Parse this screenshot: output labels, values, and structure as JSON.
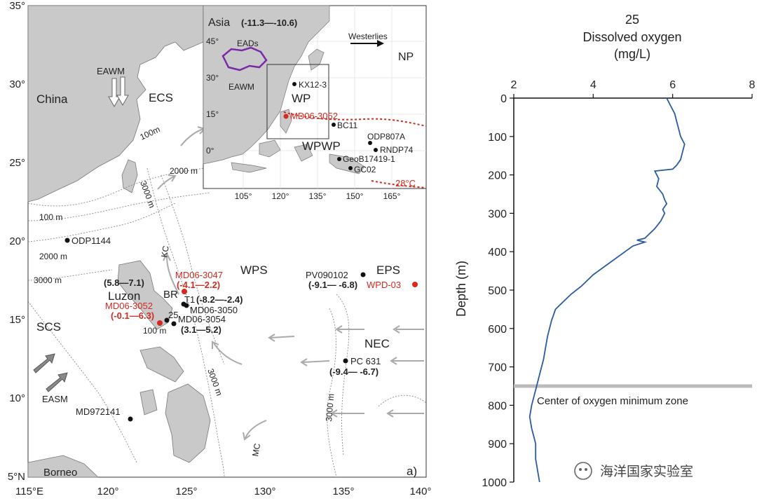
{
  "map": {
    "lat_ticks": [
      "35°",
      "30°",
      "25°",
      "20°",
      "15°",
      "10°",
      "5°N"
    ],
    "lon_ticks": [
      "115°E",
      "120°",
      "125°",
      "130°",
      "135°",
      "140°"
    ],
    "panel_label": "a)",
    "regions": {
      "china": "China",
      "ecs": "ECS",
      "eawm": "EAWM",
      "scs": "SCS",
      "luzon": "Luzon",
      "br": "BR",
      "wps": "WPS",
      "eps": "EPS",
      "nec": "NEC",
      "easm": "EASM",
      "borneo": "Borneo",
      "kc": "KC",
      "mc": "MC"
    },
    "contours": {
      "c100_ne": "100m",
      "c2000_ne": "2000 m",
      "c3000_tw": "3000 m",
      "c100_w": "100 m",
      "c2000_w": "2000 m",
      "c3000_w": "3000 m",
      "c100_lz": "100 m",
      "c3000_e": "3000 m",
      "c3000_ph": "3000 m"
    },
    "sites": {
      "odp1144": "ODP1144",
      "md063047": "MD06-3047",
      "md063047_range": "(-4.1—2.2)",
      "range_58": "(5.8—7.1)",
      "t1": "T1",
      "t1_range": "(-8.2—-2.4)",
      "md063050": "MD06-3050",
      "md063052": "MD06-3052",
      "md063052_range": "(-0.1—6.3)",
      "s25": "25",
      "md063054": "MD06-3054",
      "md063054_range": "(3.1—5.2)",
      "pv090102": "PV090102",
      "pv_range": "(-9.1— -6.8)",
      "wpd03": "WPD-03",
      "pc631": "PC 631",
      "pc631_range": "(-9.4— -6.7)",
      "md972141": "MD972141"
    }
  },
  "inset": {
    "asia": "Asia",
    "asia_range": "(-11.3—-10.6)",
    "eads": "EADs",
    "westerlies": "Westerlies",
    "np": "NP",
    "eawm": "EAWM",
    "kx": "KX12-3",
    "wp": "WP",
    "md": "MD06-3052",
    "bc": "BC11",
    "odp807": "ODP807A",
    "rndp": "RNDP74",
    "wpwp": "WPWP",
    "geob": "GeoB17419-1",
    "gc": "GC02",
    "isotherm": "28°C",
    "lat_ticks": [
      "45°",
      "30°",
      "15°",
      "0°"
    ],
    "lon_ticks": [
      "105°",
      "120°",
      "135°",
      "150°",
      "165°"
    ]
  },
  "chart_data": {
    "type": "line",
    "title": "25",
    "xlabel": "Dissolved oxygen\n(mg/L)",
    "xlabel_lines": [
      "Dissolved oxygen",
      "(mg/L)"
    ],
    "ylabel": "Depth (m)",
    "xlim": [
      2,
      8
    ],
    "ylim": [
      0,
      1000
    ],
    "x_ticks": [
      2,
      4,
      6,
      8
    ],
    "y_ticks": [
      0,
      100,
      200,
      300,
      400,
      500,
      600,
      700,
      800,
      900,
      1000
    ],
    "y_inverted": true,
    "line_color": "#2a5aa0",
    "annotation": {
      "text": "Center of oxygen minimum zone",
      "depth": 750
    },
    "series": [
      {
        "x": [
          5.85,
          5.95,
          6.05,
          6.1,
          6.15,
          6.2,
          6.3,
          6.25,
          6.2,
          6.1,
          6.0,
          5.55,
          5.65,
          5.6,
          5.75,
          5.8,
          5.85,
          5.75,
          5.8,
          5.7,
          5.55,
          5.4,
          5.3,
          5.1,
          5.3,
          5.0,
          4.8,
          4.4,
          4.0,
          3.7,
          3.45,
          3.25,
          3.05,
          2.95,
          2.9,
          2.85,
          2.8,
          2.75,
          2.65,
          2.55,
          2.45,
          2.4,
          2.45,
          2.55,
          2.55,
          2.6,
          2.65
        ],
        "y": [
          0,
          20,
          40,
          60,
          80,
          100,
          120,
          140,
          160,
          175,
          185,
          190,
          210,
          230,
          250,
          265,
          275,
          290,
          300,
          320,
          340,
          355,
          365,
          370,
          375,
          385,
          400,
          430,
          460,
          490,
          510,
          530,
          550,
          580,
          600,
          620,
          650,
          680,
          720,
          760,
          800,
          830,
          860,
          900,
          940,
          970,
          1000
        ]
      }
    ]
  },
  "watermark": "海洋国家实验室"
}
